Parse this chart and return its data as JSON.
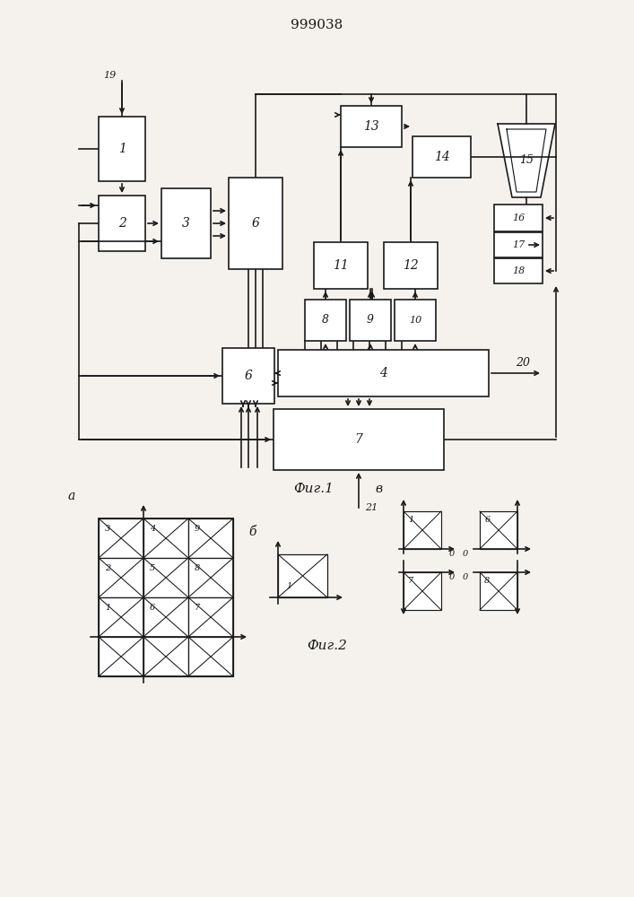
{
  "title": "999038",
  "fig1_label": "Фиг.1",
  "fig2_label": "Фиг.2",
  "bg_color": "#f5f2ee",
  "line_color": "#1a1a1a",
  "box_color": "#ffffff"
}
